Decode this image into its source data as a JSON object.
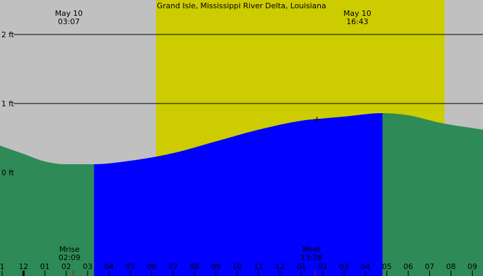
{
  "chart_data": {
    "type": "area",
    "title": "Grand Isle, Mississippi River Delta, Louisiana",
    "xlabel": "",
    "ylabel": "",
    "x_unit": "hour of day",
    "xlim": [
      -2.1,
      20.5
    ],
    "ylim": [
      -1.5,
      2.5
    ],
    "y_ticks": [
      {
        "value": 2,
        "label": "2 ft"
      },
      {
        "value": 1,
        "label": "1 ft"
      },
      {
        "value": 0,
        "label": "0 ft"
      }
    ],
    "x_ticks": [
      {
        "t": -2,
        "label": "1"
      },
      {
        "t": -1,
        "label": "12"
      },
      {
        "t": 0,
        "label": "01"
      },
      {
        "t": 1,
        "label": "02"
      },
      {
        "t": 2,
        "label": "03"
      },
      {
        "t": 3,
        "label": "04"
      },
      {
        "t": 4,
        "label": "05"
      },
      {
        "t": 5,
        "label": "06"
      },
      {
        "t": 6,
        "label": "07"
      },
      {
        "t": 7,
        "label": "08"
      },
      {
        "t": 8,
        "label": "09"
      },
      {
        "t": 9,
        "label": "10"
      },
      {
        "t": 10,
        "label": "11"
      },
      {
        "t": 11,
        "label": "12"
      },
      {
        "t": 12,
        "label": "01"
      },
      {
        "t": 13,
        "label": "02"
      },
      {
        "t": 14,
        "label": "03"
      },
      {
        "t": 15,
        "label": "04"
      },
      {
        "t": 16,
        "label": "05"
      },
      {
        "t": 17,
        "label": "06"
      },
      {
        "t": 18,
        "label": "07"
      },
      {
        "t": 19,
        "label": "08"
      },
      {
        "t": 20,
        "label": "09"
      }
    ],
    "daylight": {
      "start": 5.2,
      "end": 18.7
    },
    "tide_curve": {
      "x": [
        -2.1,
        -1,
        0,
        1,
        2,
        2.3,
        4,
        6,
        8,
        10,
        12,
        13.28,
        14,
        15.8,
        17,
        18.5,
        20.5
      ],
      "y": [
        0.39,
        0.27,
        0.16,
        0.12,
        0.12,
        0.12,
        0.17,
        0.28,
        0.45,
        0.62,
        0.75,
        0.79,
        0.81,
        0.86,
        0.83,
        0.72,
        0.62
      ]
    },
    "highlight_range": [
      2.3,
      15.8
    ],
    "sun_events": [
      {
        "date": "May 10",
        "time": "03:07",
        "t": 1.12
      },
      {
        "date": "May 10",
        "time": "16:43",
        "t": 14.62
      }
    ],
    "moon_events": [
      {
        "label": "Mrise",
        "time": "02:09",
        "t": 1.15
      },
      {
        "label": "Mset",
        "time": "13:28",
        "t": 12.47
      }
    ],
    "now_marker": {
      "t": 12.73,
      "value": 0.77
    },
    "colors": {
      "background": "#c0c0c0",
      "daylight": "#cccc00",
      "water": "#2e8b57",
      "water_highlight": "#0000ff",
      "moon_tick": "#cc0000"
    }
  }
}
